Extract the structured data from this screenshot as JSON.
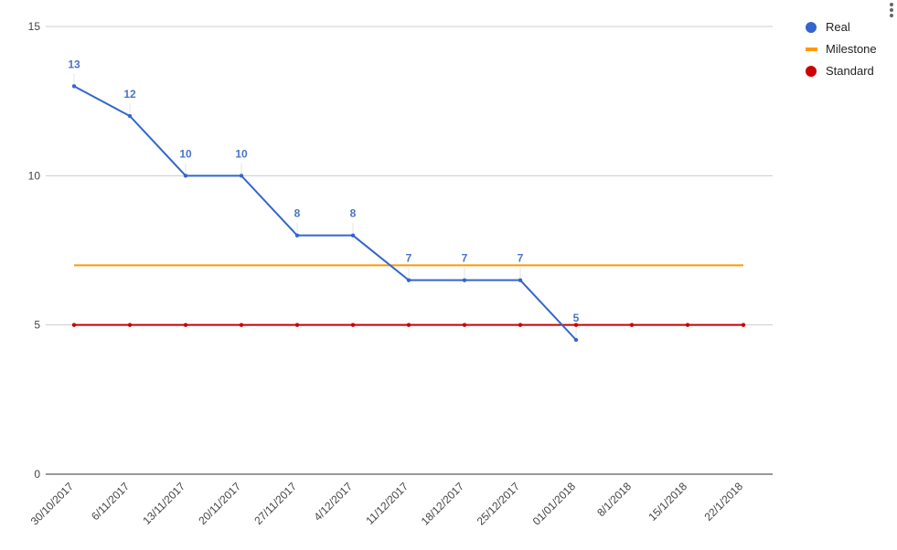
{
  "chart_data": {
    "type": "line",
    "title": "",
    "xlabel": "",
    "ylabel": "",
    "ylim": [
      0,
      15
    ],
    "yticks": [
      "0",
      "5",
      "10",
      "15"
    ],
    "grid": true,
    "legend_position": "right",
    "categories": [
      "30/10/2017",
      "6/11/2017",
      "13/11/2017",
      "20/11/2017",
      "27/11/2017",
      "4/12/2017",
      "11/12/2017",
      "18/12/2017",
      "25/12/2017",
      "01/01/2018",
      "8/1/2018",
      "15/1/2018",
      "22/1/2018"
    ],
    "series": [
      {
        "name": "Real",
        "color": "#3366cc",
        "values": [
          13,
          12,
          10,
          10,
          8,
          8,
          6.5,
          6.5,
          6.5,
          4.5,
          null,
          null,
          null
        ],
        "labels": [
          "13",
          "12",
          "10",
          "10",
          "8",
          "8",
          "7",
          "7",
          "7",
          "5",
          null,
          null,
          null
        ],
        "legend_marker": "circle"
      },
      {
        "name": "Milestone",
        "color": "#ff9900",
        "values": [
          7,
          7,
          7,
          7,
          7,
          7,
          7,
          7,
          7,
          7,
          7,
          7,
          7
        ],
        "legend_marker": "line"
      },
      {
        "name": "Standard",
        "color": "#cc0000",
        "values": [
          5,
          5,
          5,
          5,
          5,
          5,
          5,
          5,
          5,
          5,
          5,
          5,
          5
        ],
        "legend_marker": "circle"
      }
    ]
  },
  "menu_icon": "more-vert-icon"
}
